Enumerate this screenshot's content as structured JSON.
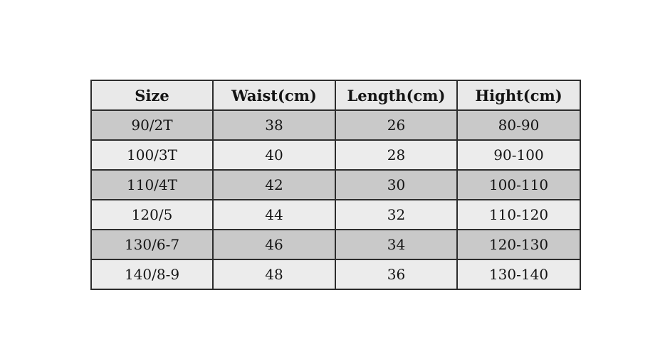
{
  "chart_data": {
    "type": "table",
    "columns": [
      "Size",
      "Waist(cm)",
      "Length(cm)",
      "Hight(cm)"
    ],
    "rows": [
      [
        "90/2T",
        "38",
        "26",
        "80-90"
      ],
      [
        "100/3T",
        "40",
        "28",
        "90-100"
      ],
      [
        "110/4T",
        "42",
        "30",
        "100-110"
      ],
      [
        "120/5",
        "44",
        "32",
        "110-120"
      ],
      [
        "130/6-7",
        "46",
        "34",
        "120-130"
      ],
      [
        "140/8-9",
        "48",
        "36",
        "130-140"
      ]
    ],
    "row_shading": [
      "dark",
      "light",
      "dark",
      "light",
      "dark",
      "light"
    ],
    "layout": {
      "grid": "on",
      "header_position": "top"
    }
  },
  "colors": {
    "page_bg": "#ffffff",
    "header_bg": "#e9e9e9",
    "row_dark_bg": "#c9c9c9",
    "row_light_bg": "#ececec",
    "border": "#2d2d2d",
    "text": "#141414"
  }
}
